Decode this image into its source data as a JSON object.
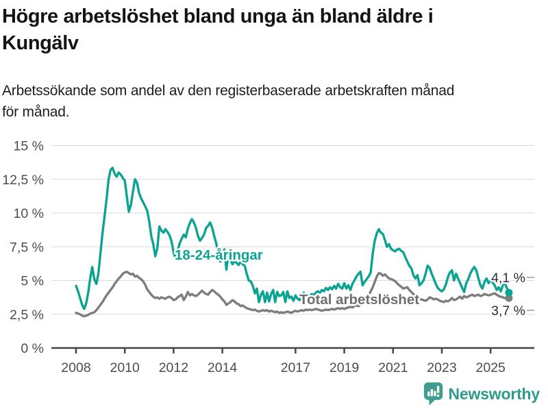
{
  "header": {
    "title_line1": "Högre arbetslöshet bland unga än bland äldre i",
    "title_line2": "Kungälv",
    "subtitle_line1": "Arbetssökande som andel av den registerbaserade arbetskraften månad",
    "subtitle_line2": "för månad."
  },
  "footer": {
    "brand": "Newsworthy",
    "logo_color": "#3f9d92",
    "brand_text_color": "#2d9a8c"
  },
  "colors": {
    "youth_line": "#0ba392",
    "total_line": "#7d7d7d",
    "gridline": "#d9d9d9",
    "axis": "#454545",
    "tick_text": "#4d4d4d",
    "background": "#ffffff"
  },
  "chart_data": {
    "type": "line",
    "title": "Högre arbetslöshet bland unga än bland äldre i Kungälv",
    "subtitle": "Arbetssökande som andel av den registerbaserade arbetskraften månad för månad.",
    "unit": "%",
    "frequency": "monthly",
    "x_start_year": 2008,
    "x_start_month": 1,
    "x_end_year": 2025,
    "x_end_month": 10,
    "ylim": [
      0,
      15
    ],
    "grid": true,
    "legend_position": "inline-labels",
    "yticks": [
      {
        "value": 0,
        "label": "0 %"
      },
      {
        "value": 2.5,
        "label": "2,5 %"
      },
      {
        "value": 5,
        "label": "5 %"
      },
      {
        "value": 7.5,
        "label": "7,5 %"
      },
      {
        "value": 10,
        "label": "10 %"
      },
      {
        "value": 12.5,
        "label": "12,5 %"
      },
      {
        "value": 15,
        "label": "15 %"
      }
    ],
    "xticks": [
      {
        "value": 2008,
        "label": "2008"
      },
      {
        "value": 2010,
        "label": "2010"
      },
      {
        "value": 2012,
        "label": "2012"
      },
      {
        "value": 2014,
        "label": "2014"
      },
      {
        "value": 2017,
        "label": "2017"
      },
      {
        "value": 2019,
        "label": "2019"
      },
      {
        "value": 2021,
        "label": "2021"
      },
      {
        "value": 2023,
        "label": "2023"
      },
      {
        "value": 2025,
        "label": "2025"
      }
    ],
    "series": [
      {
        "name": "18-24-åringar",
        "color": "#0ba392",
        "end_label": "4,1 %",
        "end_value": 4.1,
        "monthly": {
          "2008": [
            4.6,
            4.2,
            3.7,
            3.2,
            2.9,
            3.3,
            4.1,
            5.2,
            6.0,
            5.1,
            4.75,
            5.5
          ],
          "2009": [
            7.0,
            8.5,
            9.7,
            11.0,
            12.5,
            13.2,
            13.35,
            12.9,
            12.7,
            13.0,
            12.85,
            12.6
          ],
          "2010": [
            12.4,
            11.2,
            10.1,
            10.6,
            11.6,
            12.5,
            12.25,
            11.5,
            11.1,
            10.8,
            10.5,
            10.2
          ],
          "2011": [
            9.4,
            8.3,
            7.7,
            6.8,
            7.4,
            9.0,
            8.7,
            8.55,
            8.8,
            8.6,
            8.35,
            7.9
          ],
          "2012": [
            7.1,
            6.6,
            7.2,
            7.75,
            8.1,
            8.4,
            8.2,
            8.85,
            9.25,
            9.55,
            9.3,
            8.9
          ],
          "2013": [
            8.3,
            7.95,
            8.15,
            8.4,
            8.9,
            9.05,
            9.3,
            8.9,
            8.3,
            7.75,
            7.0,
            6.4
          ],
          "2014": [
            7.0,
            7.3,
            5.8,
            6.9,
            6.5,
            6.2,
            6.45,
            6.3,
            6.15,
            6.4,
            6.2,
            6.1
          ],
          "2015": [
            5.5,
            5.0,
            4.95,
            4.6,
            4.05,
            4.4,
            3.4,
            3.95,
            4.2,
            3.4,
            4.1,
            3.45
          ],
          "2016": [
            4.0,
            4.3,
            3.4,
            4.15,
            3.85,
            3.9,
            4.15,
            3.4,
            4.2,
            3.7,
            3.8,
            3.5
          ],
          "2017": [
            3.9,
            3.65,
            3.55,
            3.8,
            4.1,
            3.9,
            3.6,
            3.85,
            4.0,
            3.9,
            4.1,
            4.2
          ],
          "2018": [
            4.1,
            4.3,
            4.2,
            4.45,
            4.3,
            4.5,
            4.35,
            4.6,
            4.4,
            4.75,
            4.5,
            4.4
          ],
          "2019": [
            4.8,
            4.4,
            4.65,
            4.3,
            4.75,
            5.0,
            5.3,
            5.5,
            5.65,
            4.65,
            4.9,
            5.1
          ],
          "2020": [
            5.3,
            5.6,
            7.0,
            7.95,
            8.5,
            8.8,
            8.55,
            8.45,
            8.0,
            7.5,
            7.7,
            7.35
          ],
          "2021": [
            7.25,
            7.15,
            7.3,
            7.35,
            7.2,
            7.1,
            6.75,
            6.4,
            6.1,
            5.9,
            5.4,
            5.15
          ],
          "2022": [
            5.4,
            4.65,
            4.8,
            5.0,
            5.5,
            6.1,
            5.95,
            5.5,
            5.15,
            4.75,
            4.45,
            4.3
          ],
          "2023": [
            4.2,
            4.35,
            4.7,
            5.25,
            5.6,
            5.75,
            5.0,
            5.5,
            5.15,
            4.8,
            4.45,
            4.15
          ],
          "2024": [
            4.8,
            5.1,
            5.5,
            5.8,
            6.0,
            5.75,
            5.15,
            4.65,
            4.4,
            4.9,
            5.15,
            4.8
          ],
          "2025": [
            5.0,
            4.85,
            4.65,
            4.3,
            4.5,
            4.2,
            4.65,
            4.8,
            4.45,
            4.1
          ]
        }
      },
      {
        "name": "Total arbetslöshet",
        "color": "#7d7d7d",
        "end_label": "3,7 %",
        "end_value": 3.7,
        "monthly": {
          "2008": [
            2.6,
            2.55,
            2.5,
            2.4,
            2.35,
            2.4,
            2.45,
            2.55,
            2.6,
            2.65,
            2.8,
            3.0
          ],
          "2009": [
            3.2,
            3.4,
            3.65,
            3.9,
            4.1,
            4.3,
            4.5,
            4.75,
            4.95,
            5.15,
            5.3,
            5.5
          ],
          "2010": [
            5.6,
            5.65,
            5.55,
            5.45,
            5.5,
            5.3,
            5.35,
            5.2,
            5.1,
            4.95,
            4.7,
            4.35
          ],
          "2011": [
            4.15,
            3.95,
            3.8,
            3.7,
            3.75,
            3.65,
            3.75,
            3.7,
            3.65,
            3.75,
            3.8,
            3.7
          ],
          "2012": [
            3.55,
            3.6,
            3.75,
            3.85,
            3.95,
            3.55,
            3.8,
            4.15,
            3.9,
            4.0,
            3.9,
            3.85
          ],
          "2013": [
            3.95,
            4.1,
            4.25,
            4.1,
            4.0,
            3.95,
            4.15,
            4.3,
            4.2,
            4.05,
            3.95,
            3.8
          ],
          "2014": [
            3.6,
            3.45,
            3.2,
            3.3,
            3.4,
            3.55,
            3.45,
            3.3,
            3.25,
            3.1,
            3.15,
            3.05
          ],
          "2015": [
            2.95,
            2.9,
            2.85,
            2.8,
            2.85,
            2.75,
            2.7,
            2.75,
            2.8,
            2.75,
            2.8,
            2.7
          ],
          "2016": [
            2.75,
            2.7,
            2.65,
            2.7,
            2.6,
            2.65,
            2.6,
            2.65,
            2.7,
            2.65,
            2.6,
            2.7
          ],
          "2017": [
            2.75,
            2.7,
            2.75,
            2.8,
            2.75,
            2.85,
            2.8,
            2.85,
            2.8,
            2.85,
            2.9,
            2.85
          ],
          "2018": [
            2.8,
            2.75,
            2.8,
            2.85,
            2.8,
            2.85,
            2.9,
            2.85,
            2.9,
            2.95,
            2.9,
            2.95
          ],
          "2019": [
            2.9,
            2.95,
            3.0,
            3.05,
            3.0,
            3.1,
            3.15,
            3.1,
            3.2,
            3.3,
            3.45,
            3.6
          ],
          "2020": [
            3.9,
            4.2,
            4.5,
            4.9,
            5.3,
            5.55,
            5.5,
            5.35,
            5.45,
            5.3,
            5.15,
            5.1
          ],
          "2021": [
            5.05,
            4.95,
            4.8,
            4.65,
            4.55,
            4.4,
            4.45,
            4.5,
            4.3,
            4.15,
            4.0,
            3.8
          ],
          "2022": [
            3.75,
            3.65,
            3.6,
            3.55,
            3.5,
            3.6,
            3.75,
            3.7,
            3.6,
            3.65,
            3.6,
            3.5
          ],
          "2023": [
            3.45,
            3.4,
            3.5,
            3.45,
            3.55,
            3.7,
            3.55,
            3.6,
            3.7,
            3.8,
            3.65,
            3.85
          ],
          "2024": [
            3.75,
            3.8,
            3.9,
            3.95,
            3.85,
            3.9,
            3.95,
            3.85,
            3.9,
            4.0,
            3.95,
            3.9
          ],
          "2025": [
            3.95,
            4.0,
            4.05,
            3.95,
            3.85,
            3.8,
            3.75,
            3.7,
            3.65,
            3.7
          ]
        }
      }
    ]
  }
}
